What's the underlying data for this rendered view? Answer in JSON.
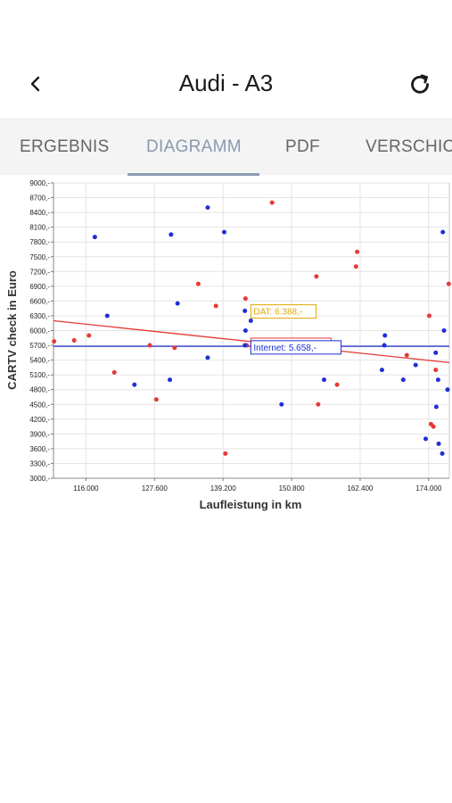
{
  "header": {
    "title": "Audi - A3",
    "back_icon": "chevron-left-icon",
    "reload_icon": "refresh-icon"
  },
  "tabs": [
    {
      "label": "ERGEBNIS",
      "active": false
    },
    {
      "label": "DIAGRAMM",
      "active": true
    },
    {
      "label": "PDF",
      "active": false
    },
    {
      "label": "VERSCHICKEN",
      "active": false
    }
  ],
  "colors": {
    "red": "#e53935",
    "blue": "#1e2fd6",
    "dat": "#e0a800",
    "indicator": "#8c9bb2"
  },
  "chart_data": {
    "type": "scatter",
    "xlabel": "Laufleistung in km",
    "ylabel": "CARTV check in Euro",
    "xlim": [
      110500,
      177500
    ],
    "ylim": [
      3000,
      9000
    ],
    "xticks": [
      116000,
      127600,
      139200,
      150800,
      162400,
      174000
    ],
    "xtick_labels": [
      "116.000",
      "127.600",
      "139.200",
      "150.800",
      "162.400",
      "174.000"
    ],
    "yticks": [
      3000,
      3300,
      3600,
      3900,
      4200,
      4500,
      4800,
      5100,
      5400,
      5700,
      6000,
      6300,
      6600,
      6900,
      7200,
      7500,
      7800,
      8100,
      8400,
      8700,
      9000
    ],
    "ytick_labels": [
      "3000,-",
      "3300,-",
      "3600,-",
      "3900,-",
      "4200,-",
      "4500,-",
      "4800,-",
      "5100,-",
      "5400,-",
      "5700,-",
      "6000,-",
      "6300,-",
      "6600,-",
      "6900,-",
      "7200,-",
      "7500,-",
      "7800,-",
      "8100,-",
      "8400,-",
      "8700,-",
      "9000,-"
    ],
    "grid": true,
    "series": [
      {
        "color": "#e53935",
        "points": [
          [
            110600,
            5780
          ],
          [
            114000,
            5800
          ],
          [
            116500,
            5900
          ],
          [
            120800,
            5150
          ],
          [
            126800,
            5700
          ],
          [
            127900,
            4600
          ],
          [
            131000,
            5650
          ],
          [
            135000,
            6950
          ],
          [
            138000,
            6500
          ],
          [
            139600,
            3500
          ],
          [
            143000,
            6650
          ],
          [
            143200,
            5700
          ],
          [
            147500,
            8600
          ],
          [
            155000,
            7100
          ],
          [
            155300,
            4500
          ],
          [
            158500,
            4900
          ],
          [
            161900,
            7600
          ],
          [
            161700,
            7300
          ],
          [
            170300,
            5500
          ],
          [
            174100,
            6300
          ],
          [
            174400,
            4100
          ],
          [
            174800,
            4050
          ],
          [
            175200,
            5200
          ],
          [
            177400,
            6950
          ]
        ]
      },
      {
        "color": "#1e2fd6",
        "points": [
          [
            117500,
            7900
          ],
          [
            119600,
            6300
          ],
          [
            124200,
            4900
          ],
          [
            130400,
            7950
          ],
          [
            131500,
            6550
          ],
          [
            130200,
            5000
          ],
          [
            136600,
            8500
          ],
          [
            136600,
            5450
          ],
          [
            139400,
            8000
          ],
          [
            142900,
            6400
          ],
          [
            143900,
            6200
          ],
          [
            143000,
            6000
          ],
          [
            142900,
            5700
          ],
          [
            149100,
            4500
          ],
          [
            156300,
            5000
          ],
          [
            166600,
            5900
          ],
          [
            166500,
            5700
          ],
          [
            166100,
            5200
          ],
          [
            169700,
            5000
          ],
          [
            171800,
            5300
          ],
          [
            173500,
            3800
          ],
          [
            175700,
            3700
          ],
          [
            175300,
            4450
          ],
          [
            175600,
            5000
          ],
          [
            175200,
            5550
          ],
          [
            176400,
            8000
          ],
          [
            176600,
            6000
          ],
          [
            177200,
            4800
          ],
          [
            176300,
            3500
          ]
        ]
      }
    ],
    "trend_lines": [
      {
        "color": "#e53935",
        "from": [
          110500,
          6200
        ],
        "to": [
          177500,
          5350
        ]
      },
      {
        "color": "#1e2fd6",
        "from": [
          110500,
          5680
        ],
        "to": [
          177500,
          5680
        ]
      }
    ],
    "annotations": [
      {
        "text": "DAT: 6.388,-",
        "x": 143300,
        "y": 6388,
        "color": "#e0a800"
      },
      {
        "text": "car.tv: 5.711,-",
        "x": 143300,
        "y": 5711,
        "color": "#e53935"
      },
      {
        "text": "Internet: 5.658,-",
        "x": 143300,
        "y": 5658,
        "color": "#1e2fd6"
      }
    ]
  }
}
